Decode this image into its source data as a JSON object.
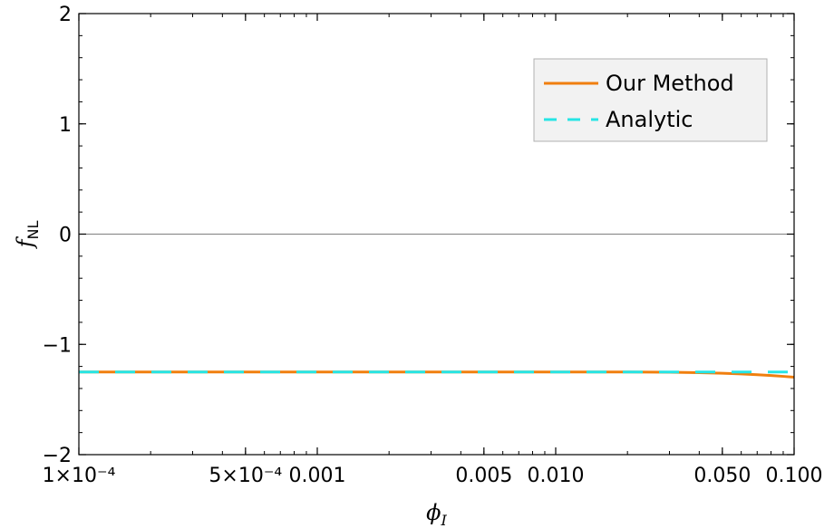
{
  "chart_data": {
    "type": "line",
    "xscale": "log",
    "xlim": [
      0.0001,
      0.1
    ],
    "ylim": [
      -2,
      2
    ],
    "xticks": [
      {
        "value": 0.0001,
        "label": "1×10⁻⁴"
      },
      {
        "value": 0.0005,
        "label": "5×10⁻⁴"
      },
      {
        "value": 0.001,
        "label": "0.001"
      },
      {
        "value": 0.005,
        "label": "0.005"
      },
      {
        "value": 0.01,
        "label": "0.010"
      },
      {
        "value": 0.05,
        "label": "0.050"
      },
      {
        "value": 0.1,
        "label": "0.100"
      }
    ],
    "yticks": [
      {
        "value": 2,
        "label": "2"
      },
      {
        "value": 1,
        "label": "1"
      },
      {
        "value": 0,
        "label": "0"
      },
      {
        "value": -1,
        "label": "−1"
      },
      {
        "value": -2,
        "label": "−2"
      }
    ],
    "xlabel": "ϕ",
    "xlabel_sub": "I",
    "ylabel": "f",
    "ylabel_sub": "NL",
    "reference_line_y": 0,
    "legend_position": "top-right",
    "colors": {
      "our_method": "#f07f0f",
      "analytic": "#26e5e5",
      "zero_line": "#808080"
    },
    "series": [
      {
        "name": "Our Method",
        "style": "solid",
        "x": [
          0.0001,
          0.0003,
          0.001,
          0.003,
          0.01,
          0.02,
          0.03,
          0.04,
          0.05,
          0.06,
          0.07,
          0.08,
          0.09,
          0.1
        ],
        "y": [
          -1.25,
          -1.25,
          -1.25,
          -1.25,
          -1.25,
          -1.251,
          -1.253,
          -1.257,
          -1.262,
          -1.268,
          -1.275,
          -1.282,
          -1.29,
          -1.298
        ]
      },
      {
        "name": "Analytic",
        "style": "dashed",
        "x": [
          0.0001,
          0.1
        ],
        "y": [
          -1.25,
          -1.25
        ]
      }
    ]
  }
}
